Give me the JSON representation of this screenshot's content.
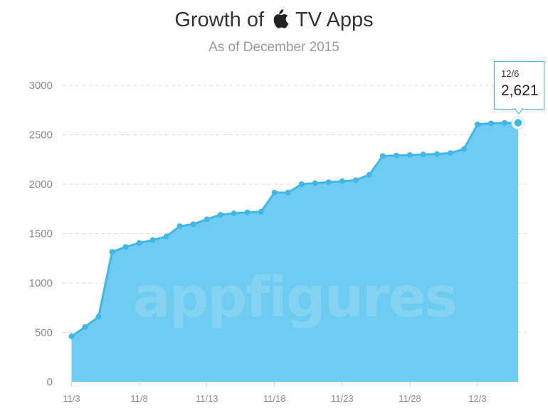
{
  "header": {
    "title_before": "Growth of",
    "title_after": "TV Apps",
    "title_icon": "apple-logo-icon",
    "subtitle": "As of December 2015"
  },
  "watermark": "appfigures",
  "tooltip": {
    "date": "12/6",
    "value": "2,621"
  },
  "colors": {
    "fill": "#6ecbf1",
    "line": "#3fb8e8",
    "grid": "#dddddd",
    "tick_text": "#8a8a8a"
  },
  "chart_data": {
    "type": "area",
    "title": "Growth of TV Apps",
    "subtitle": "As of December 2015",
    "xlabel": "",
    "ylabel": "",
    "ylim": [
      0,
      3000
    ],
    "yticks": [
      0,
      500,
      1000,
      1500,
      2000,
      2500,
      3000
    ],
    "xtick_labels": [
      "11/3",
      "11/8",
      "11/13",
      "11/18",
      "11/23",
      "11/28",
      "12/3"
    ],
    "grid": true,
    "legend": "none",
    "x": [
      "11/3",
      "11/4",
      "11/5",
      "11/6",
      "11/7",
      "11/8",
      "11/9",
      "11/10",
      "11/11",
      "11/12",
      "11/13",
      "11/14",
      "11/15",
      "11/16",
      "11/17",
      "11/18",
      "11/19",
      "11/20",
      "11/21",
      "11/22",
      "11/23",
      "11/24",
      "11/25",
      "11/26",
      "11/27",
      "11/28",
      "11/29",
      "11/30",
      "12/1",
      "12/2",
      "12/3",
      "12/4",
      "12/5",
      "12/6"
    ],
    "series": [
      {
        "values": [
          460,
          555,
          660,
          1315,
          1365,
          1405,
          1435,
          1470,
          1575,
          1595,
          1645,
          1690,
          1705,
          1715,
          1720,
          1915,
          1915,
          2000,
          2010,
          2020,
          2030,
          2040,
          2095,
          2285,
          2290,
          2295,
          2300,
          2305,
          2315,
          2355,
          2605,
          2615,
          2620,
          2621
        ]
      }
    ]
  }
}
